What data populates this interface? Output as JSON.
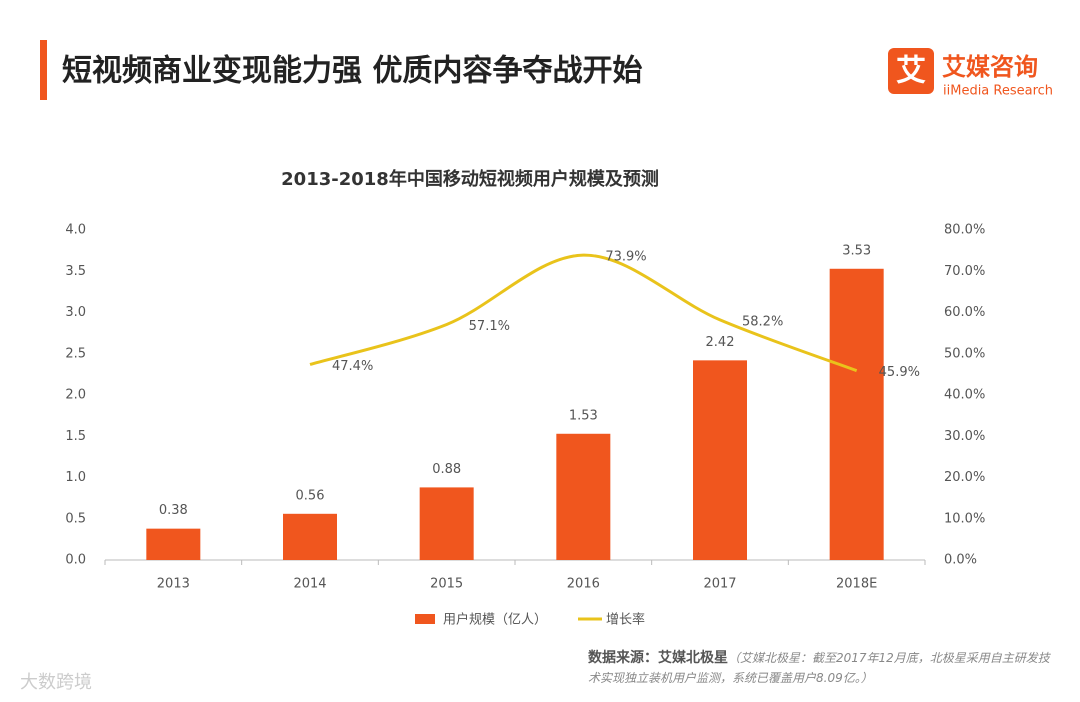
{
  "header": {
    "title": "短视频商业变现能力强  优质内容争夺战开始",
    "logo_text": "艾媒咨询",
    "logo_icon": "艾",
    "logo_sub": "iiMedia Research"
  },
  "chart_data": {
    "type": "bar_line",
    "title": "2013-2018年中国移动短视频用户规模及预测",
    "categories": [
      "2013",
      "2014",
      "2015",
      "2016",
      "2017",
      "2018E"
    ],
    "series": [
      {
        "name": "用户规模（亿人）",
        "type": "bar",
        "color": "#f0561e",
        "values": [
          0.38,
          0.56,
          0.88,
          1.53,
          2.42,
          3.53
        ]
      },
      {
        "name": "增长率",
        "type": "line",
        "axis": "y2",
        "color": "#e9c31b",
        "values": [
          null,
          47.4,
          57.1,
          73.9,
          58.2,
          45.9
        ],
        "value_labels": [
          null,
          "47.4%",
          "57.1%",
          "73.9%",
          "58.2%",
          "45.9%"
        ]
      }
    ],
    "ylim": [
      0,
      4
    ],
    "yticks": [
      {
        "value": 0,
        "label": "0.0"
      },
      0.5,
      {
        "value": 1,
        "label": "1.0"
      },
      1.5,
      {
        "value": 2,
        "label": "2.0"
      },
      2.5,
      {
        "value": 3,
        "label": "3.0"
      },
      3.5,
      {
        "value": 4,
        "label": "4.0"
      }
    ],
    "y2lim": [
      0,
      80
    ],
    "y2ticks": [
      {
        "value": 0,
        "label": "0.0%"
      },
      {
        "value": 10,
        "label": "10.0%"
      },
      {
        "value": 20,
        "label": "20.0%"
      },
      {
        "value": 30,
        "label": "30.0%"
      },
      {
        "value": 40,
        "label": "40.0%"
      },
      {
        "value": 50,
        "label": "50.0%"
      },
      {
        "value": 60,
        "label": "60.0%"
      },
      {
        "value": 70,
        "label": "70.0%"
      },
      {
        "value": 80,
        "label": "80.0%"
      }
    ],
    "legend": "bottom"
  },
  "footer": {
    "source": "数据来源：艾媒北极星",
    "note": "（艾媒北极星：截至2017年12月底，北极星采用自主研发技术实现独立装机用户监测，系统已覆盖用户8.09亿。）",
    "watermark": "大数跨境"
  }
}
